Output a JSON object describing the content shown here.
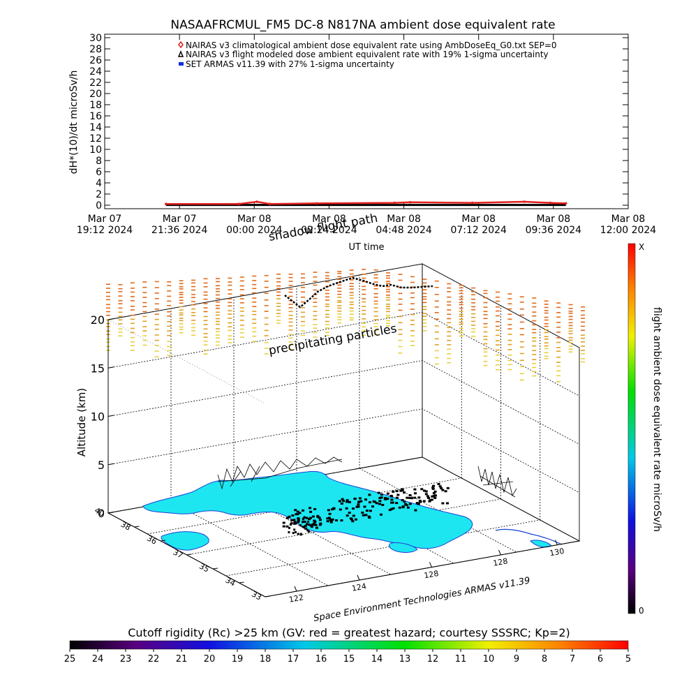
{
  "title": "NASAAFRCMUL_FM5 DC-8   N817NA ambient dose equivalent rate",
  "colors": {
    "climatological_marker": "#e0201e",
    "flight_marker": "#000000",
    "armas_marker": "#1030e0",
    "land_fill": "#1ee6f0",
    "coast_line": "#1840d8",
    "points_warm": "#e07018",
    "points_mid": "#e0b020"
  },
  "chart_data": [
    {
      "type": "line",
      "title": "NASAAFRCMUL_FM5 DC-8   N817NA ambient dose equivalent rate",
      "ylabel": "dH*(10)/dt microSv/h",
      "xlabel": "UT time",
      "ylim": [
        0,
        30
      ],
      "yticks": [
        "0",
        "2",
        "4",
        "6",
        "8",
        "10",
        "12",
        "14",
        "16",
        "18",
        "20",
        "22",
        "24",
        "26",
        "28",
        "30"
      ],
      "xticks": [
        {
          "line1": "Mar 07",
          "line2": "19:12 2024"
        },
        {
          "line1": "Mar 07",
          "line2": "21:36 2024"
        },
        {
          "line1": "Mar 08",
          "line2": "00:00 2024"
        },
        {
          "line1": "Mar 08",
          "line2": "02:24 2024"
        },
        {
          "line1": "Mar 08",
          "line2": "04:48 2024"
        },
        {
          "line1": "Mar 08",
          "line2": "07:12 2024"
        },
        {
          "line1": "Mar 08",
          "line2": "09:36 2024"
        },
        {
          "line1": "Mar 08",
          "line2": "12:00 2024"
        }
      ],
      "legend": [
        {
          "marker": "diamond",
          "label": "NAIRAS v3 climatological ambient dose equivalent rate using AmbDoseEq_G0.txt SEP=0"
        },
        {
          "marker": "triangle",
          "label": "NAIRAS v3 flight modeled dose ambient equivalent rate with 19% 1-sigma uncertainty"
        },
        {
          "marker": "square",
          "label": "SET ARMAS v11.39 with 27% 1-sigma uncertainty"
        }
      ],
      "legend_placement": "top-left",
      "series": [
        {
          "name": "NAIRAS v3 climatological ambient dose equivalent rate using AmbDoseEq_G0.txt SEP=0",
          "x": [
            "Mar 07 21:10",
            "Mar 07 23:30",
            "Mar 08 00:05",
            "Mar 08 00:30",
            "Mar 08 02:00",
            "Mar 08 04:30",
            "Mar 08 05:00",
            "Mar 08 07:00",
            "Mar 08 08:40",
            "Mar 08 09:30",
            "Mar 08 10:00"
          ],
          "values": [
            0.1,
            0.1,
            0.5,
            0.1,
            0.2,
            0.3,
            0.4,
            0.3,
            0.5,
            0.3,
            0.2
          ]
        },
        {
          "name": "NAIRAS v3 flight modeled dose ambient equivalent rate with 19% 1-sigma uncertainty",
          "x": [
            "Mar 07 21:10",
            "Mar 08 10:00"
          ],
          "values": [
            0.05,
            0.05
          ]
        }
      ]
    },
    {
      "type": "scatter",
      "subtype": "3d",
      "ylabel": "Altitude (km)",
      "zticks": [
        "0",
        "5",
        "10",
        "15",
        "20"
      ],
      "lat_ticks": [
        "40",
        "38",
        "36",
        "37",
        "35",
        "34",
        "33"
      ],
      "lon_ticks": [
        "122",
        "124",
        "128",
        "128",
        "130"
      ],
      "annotations": {
        "shadow_flight_path": "shadow flight path",
        "precipitating_particles": "precipitating particles",
        "credit": "Space Environment Technologies ARMAS v11.39"
      },
      "colorbar_right": {
        "label": "flight ambient dose equivalent rate microSv/h",
        "top": "X",
        "bottom": "0"
      },
      "colorbar_bottom": {
        "label": "Cutoff rigidity (Rc) >25 km (GV: red = greatest hazard; courtesy SSSRC; Kp=2)",
        "ticks": [
          "25",
          "24",
          "23",
          "22",
          "21",
          "20",
          "19",
          "18",
          "17",
          "16",
          "15",
          "14",
          "13",
          "12",
          "11",
          "10",
          "9",
          "8",
          "7",
          "6",
          "5"
        ]
      }
    }
  ]
}
